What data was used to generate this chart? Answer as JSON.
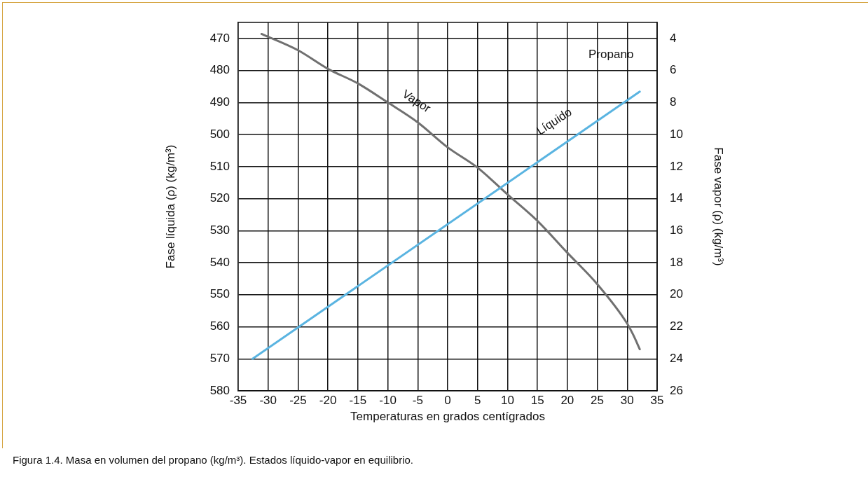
{
  "chart_data": {
    "type": "line",
    "title": "Propano",
    "xlabel": "Temperaturas en grados centígrados",
    "ylabel": "Fase líquida (ρ) (kg/m³)",
    "y2label": "Fase vapor (ρ) (kg/m³)",
    "xlim": [
      -35,
      35
    ],
    "xticks": [
      -35,
      -30,
      -25,
      -20,
      -15,
      -10,
      -5,
      0,
      5,
      10,
      15,
      20,
      25,
      30,
      35
    ],
    "ylim": [
      580,
      465
    ],
    "yticks": [
      470,
      480,
      490,
      500,
      510,
      520,
      530,
      540,
      550,
      560,
      570,
      580
    ],
    "y2lim": [
      26,
      3
    ],
    "y2ticks": [
      4,
      6,
      8,
      10,
      12,
      14,
      16,
      18,
      20,
      22,
      24,
      26
    ],
    "grid": true,
    "legend": false,
    "marker": "none",
    "line_style": "solid",
    "series": [
      {
        "color": "#5ab4e1",
        "x": [
          -32.6,
          32.1
        ],
        "values": [
          570,
          486.6
        ]
      },
      {
        "color": "#707070",
        "axis": "y2",
        "x": [
          -31.1,
          -25,
          -20,
          -15,
          -10,
          -5,
          0,
          5,
          10,
          15,
          20,
          25,
          30,
          31,
          32.1
        ],
        "values": [
          3.72,
          4.74,
          5.9,
          6.81,
          8.0,
          9.24,
          10.8,
          12.07,
          13.74,
          15.39,
          17.38,
          19.34,
          21.8,
          22.5,
          23.4
        ]
      }
    ],
    "annotations": [
      "Vapor",
      "Líquido",
      "Figura 1.4.  Masa en volumen del propano (kg/m³). Estados líquido-vapor en equilibrio."
    ]
  }
}
